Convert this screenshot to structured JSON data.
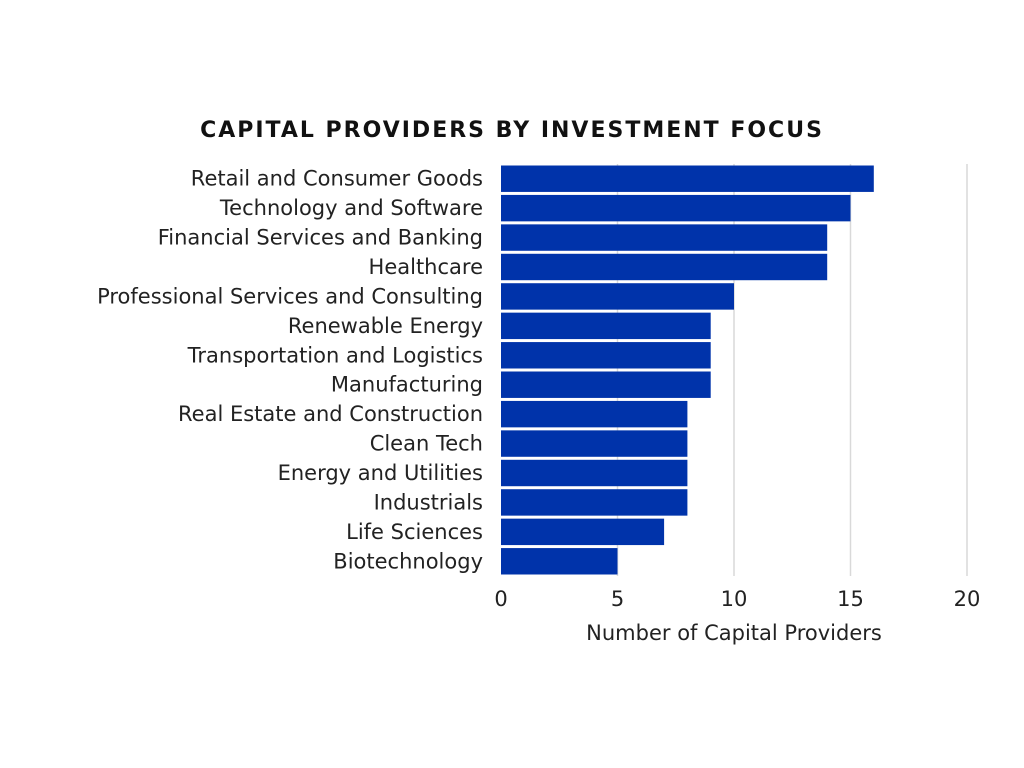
{
  "chart_data": {
    "type": "bar",
    "orientation": "horizontal",
    "title": "CAPITAL PROVIDERS BY INVESTMENT FOCUS",
    "xlabel": "Number of Capital Providers",
    "ylabel": "",
    "categories": [
      "Retail and Consumer Goods",
      "Technology and Software",
      "Financial Services and Banking",
      "Healthcare",
      "Professional Services and Consulting",
      "Renewable Energy",
      "Transportation and Logistics",
      "Manufacturing",
      "Real Estate and Construction",
      "Clean Tech",
      "Energy and Utilities",
      "Industrials",
      "Life Sciences",
      "Biotechnology"
    ],
    "values": [
      16,
      15,
      14,
      14,
      10,
      9,
      9,
      9,
      8,
      8,
      8,
      8,
      7,
      5
    ],
    "xlim": [
      0,
      20
    ],
    "xticks": [
      0,
      5,
      10,
      15,
      20
    ],
    "grid": "vertical",
    "legend": "none",
    "bar_color": "#0033aa",
    "grid_color": "#d9d9d9"
  }
}
